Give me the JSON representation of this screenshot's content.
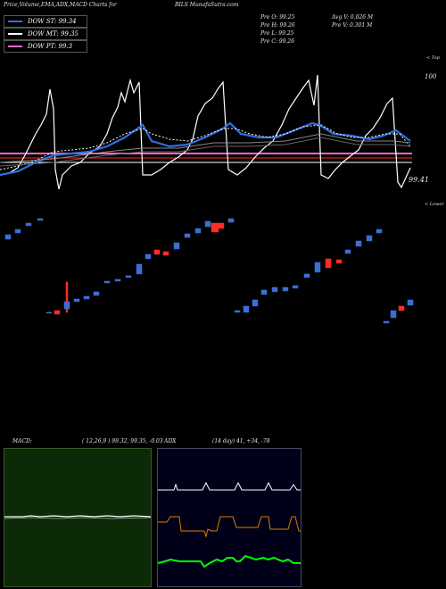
{
  "header": {
    "title": "Price,Volume,EMA,ADX,MACD Charts for",
    "symbol": "BILS",
    "site": "MunafaSutra.com"
  },
  "legend": [
    {
      "label": "DOW ST: 99.34",
      "color": "#3b6fd4"
    },
    {
      "label": "DOW MT: 99.35",
      "color": "#ffffff"
    },
    {
      "label": "DOW PT: 99.3",
      "color": "#ff66cc"
    }
  ],
  "ohlc": {
    "open": "Pre  O: 99.25",
    "high": "Pre  H: 99.26",
    "low": "Pre  L: 99.25",
    "close": "Pre  C: 99.26",
    "avg_volume": "Avg V: 0.026  M",
    "prev_volume": "Pre  V: 0.301 M"
  },
  "annotations": {
    "top": "< Top",
    "price_100": "100",
    "price_9941": "99.41",
    "lower": "< Lower"
  },
  "macd": {
    "label": "MACD:",
    "params": "( 12,26,9 ) 99.32,  99.35,  -0.03"
  },
  "adx": {
    "label": "ADX",
    "params": "(14  day) 41,  +34,  -78"
  },
  "chart_data": {
    "type": "line",
    "title": "Price,Volume,EMA,ADX,MACD Charts for BILS",
    "series": [
      {
        "name": "DOW ST",
        "value": 99.34
      },
      {
        "name": "DOW MT",
        "value": 99.35
      },
      {
        "name": "DOW PT",
        "value": 99.3
      }
    ],
    "price_levels": [
      100,
      99.41
    ],
    "colors": {
      "up": "#3b6fd4",
      "down": "#ff2b2b",
      "ema_short": "#2f6fe0",
      "ema_mid": "#ffffff",
      "ema_pt": "#ff66cc",
      "red_line": "#ff2b2b",
      "adx": "#ffffff",
      "adx_plus": "#e07b00",
      "adx_minus": "#00ff00"
    }
  }
}
